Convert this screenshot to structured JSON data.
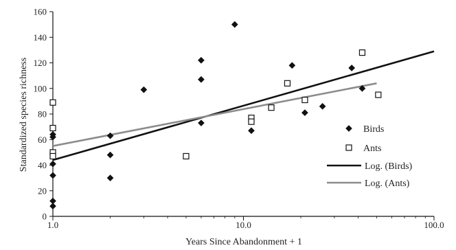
{
  "chart_data": {
    "type": "scatter",
    "xscale": "log",
    "xlim": [
      1,
      100
    ],
    "ylim": [
      0,
      160
    ],
    "xlabel": "Years Since Abandonment + 1",
    "ylabel": "Standardized species richness",
    "xtick_labels": [
      "1.0",
      "10.0",
      "100.0"
    ],
    "xtick_values": [
      1,
      10,
      100
    ],
    "ytick_values": [
      0,
      20,
      40,
      60,
      80,
      100,
      120,
      140,
      160
    ],
    "ytick_labels": [
      "0",
      "20",
      "40",
      "60",
      "80",
      "100",
      "120",
      "140",
      "160"
    ],
    "grid": false,
    "legend_position": "right",
    "series": [
      {
        "name": "Birds",
        "marker": "filled-diamond",
        "color": "#111111",
        "points": [
          {
            "x": 1,
            "y": 8
          },
          {
            "x": 1,
            "y": 12
          },
          {
            "x": 1,
            "y": 32
          },
          {
            "x": 1,
            "y": 41
          },
          {
            "x": 1,
            "y": 62
          },
          {
            "x": 1,
            "y": 64
          },
          {
            "x": 2,
            "y": 30
          },
          {
            "x": 2,
            "y": 48
          },
          {
            "x": 2,
            "y": 63
          },
          {
            "x": 3,
            "y": 99
          },
          {
            "x": 6,
            "y": 73
          },
          {
            "x": 6,
            "y": 107
          },
          {
            "x": 6,
            "y": 122
          },
          {
            "x": 9,
            "y": 150
          },
          {
            "x": 11,
            "y": 67
          },
          {
            "x": 18,
            "y": 118
          },
          {
            "x": 21,
            "y": 81
          },
          {
            "x": 26,
            "y": 86
          },
          {
            "x": 37,
            "y": 116
          },
          {
            "x": 42,
            "y": 100
          }
        ]
      },
      {
        "name": "Ants",
        "marker": "open-square",
        "color": "#111111",
        "points": [
          {
            "x": 1,
            "y": 89
          },
          {
            "x": 1,
            "y": 69
          },
          {
            "x": 1,
            "y": 50
          },
          {
            "x": 1,
            "y": 47
          },
          {
            "x": 5,
            "y": 47
          },
          {
            "x": 11,
            "y": 77
          },
          {
            "x": 11,
            "y": 74
          },
          {
            "x": 14,
            "y": 85
          },
          {
            "x": 17,
            "y": 104
          },
          {
            "x": 21,
            "y": 91
          },
          {
            "x": 42,
            "y": 128
          },
          {
            "x": 51,
            "y": 95
          }
        ]
      }
    ],
    "trendlines": [
      {
        "name": "Log. (Birds)",
        "color": "#111111",
        "x": [
          1,
          100
        ],
        "y": [
          44,
          129
        ]
      },
      {
        "name": "Log. (Ants)",
        "color": "#8c8c8c",
        "x": [
          1,
          50
        ],
        "y": [
          55,
          104
        ]
      }
    ]
  }
}
